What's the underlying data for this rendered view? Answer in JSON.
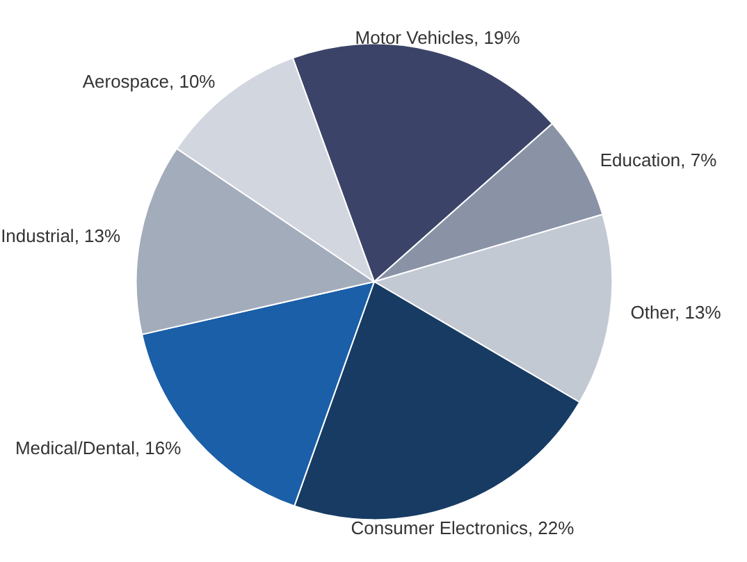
{
  "chart_data": {
    "type": "pie",
    "categories": [
      "Motor Vehicles",
      "Education",
      "Other",
      "Consumer Electronics",
      "Medical/Dental",
      "Industrial",
      "Aerospace"
    ],
    "values": [
      19,
      7,
      13,
      22,
      16,
      13,
      10
    ],
    "value_labels": [
      "19%",
      "7%",
      "13%",
      "22%",
      "16%",
      "13%",
      "10%"
    ],
    "colors": [
      "#3b4468",
      "#8a93a6",
      "#c3c9d3",
      "#173b63",
      "#1a5fa8",
      "#a3acbb",
      "#d2d6df"
    ]
  }
}
